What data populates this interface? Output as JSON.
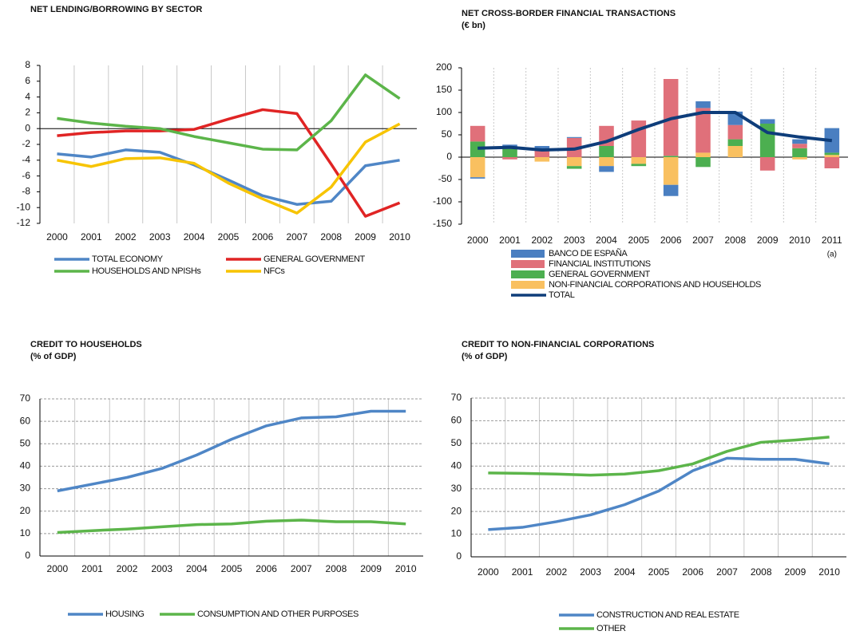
{
  "chart_data": [
    {
      "type": "line",
      "title": "NET LENDING/BORROWING BY SECTOR",
      "categories": [
        "2000",
        "2001",
        "2002",
        "2003",
        "2004",
        "2005",
        "2006",
        "2007",
        "2008",
        "2009",
        "2010"
      ],
      "ylim": [
        -12,
        8
      ],
      "yticks": [
        -12,
        -10,
        -8,
        -6,
        -4,
        -2,
        0,
        2,
        4,
        6,
        8
      ],
      "grid": false,
      "series": [
        {
          "name": "TOTAL ECONOMY",
          "color": "#4f86c6",
          "values": [
            -3.2,
            -3.6,
            -2.7,
            -3.0,
            -4.6,
            -6.5,
            -8.5,
            -9.6,
            -9.2,
            -4.7,
            -4.0
          ]
        },
        {
          "name": "GENERAL GOVERNMENT",
          "color": "#e02424",
          "values": [
            -0.9,
            -0.5,
            -0.3,
            -0.3,
            -0.1,
            1.2,
            2.4,
            1.9,
            -4.5,
            -11.1,
            -9.4
          ]
        },
        {
          "name": "HOUSEHOLDS AND NPISHs",
          "color": "#5cb54a",
          "values": [
            1.3,
            0.7,
            0.3,
            0.0,
            -1.0,
            -1.8,
            -2.6,
            -2.7,
            1.0,
            6.8,
            3.8
          ]
        },
        {
          "name": "NFCs",
          "color": "#f7c400",
          "values": [
            -4.0,
            -4.8,
            -3.8,
            -3.7,
            -4.4,
            -6.9,
            -8.9,
            -10.7,
            -7.4,
            -1.7,
            0.6
          ]
        }
      ]
    },
    {
      "type": "bar",
      "stacked": true,
      "title": "NET CROSS-BORDER FINANCIAL TRANSACTIONS",
      "subtitle": "(€ bn)",
      "annotation": "(a)",
      "categories": [
        "2000",
        "2001",
        "2002",
        "2003",
        "2004",
        "2005",
        "2006",
        "2007",
        "2008",
        "2009",
        "2010",
        "2011"
      ],
      "ylim": [
        -150,
        200
      ],
      "yticks": [
        -150,
        -100,
        -50,
        0,
        50,
        100,
        150,
        200
      ],
      "grid": false,
      "series": [
        {
          "name": "BANCO DE ESPAÑA",
          "type": "bar",
          "color": "#4a7fc1",
          "values": [
            -3,
            8,
            10,
            2,
            -13,
            0,
            -25,
            15,
            30,
            10,
            10,
            55
          ]
        },
        {
          "name": "FINANCIAL INSTITUTIONS",
          "type": "bar",
          "color": "#e0707a",
          "values": [
            35,
            -5,
            15,
            43,
            45,
            82,
            172,
            100,
            32,
            -30,
            10,
            -25
          ]
        },
        {
          "name": "GENERAL GOVERNMENT",
          "type": "bar",
          "color": "#4caf50",
          "values": [
            35,
            20,
            0,
            -6,
            25,
            -5,
            3,
            -22,
            15,
            75,
            20,
            5
          ]
        },
        {
          "name": "NON-FINANCIAL CORPORATIONS AND HOUSEHOLDS",
          "type": "bar",
          "color": "#f9c060",
          "values": [
            -45,
            0,
            -10,
            -20,
            -20,
            -15,
            -62,
            10,
            25,
            0,
            -5,
            5
          ]
        },
        {
          "name": "TOTAL",
          "type": "line",
          "color": "#0e3d7a",
          "values": [
            20,
            22,
            16,
            18,
            35,
            62,
            86,
            100,
            100,
            55,
            45,
            37
          ]
        }
      ]
    },
    {
      "type": "line",
      "title": "CREDIT TO HOUSEHOLDS",
      "subtitle": "(% of GDP)",
      "categories": [
        "2000",
        "2001",
        "2002",
        "2003",
        "2004",
        "2005",
        "2006",
        "2007",
        "2008",
        "2009",
        "2010"
      ],
      "ylim": [
        0,
        70
      ],
      "yticks": [
        0,
        10,
        20,
        30,
        40,
        50,
        60,
        70
      ],
      "grid": true,
      "series": [
        {
          "name": "HOUSING",
          "color": "#4f86c6",
          "values": [
            29,
            32,
            35,
            39,
            45,
            52,
            58,
            61.5,
            62,
            64.5,
            64.5
          ]
        },
        {
          "name": "CONSUMPTION AND OTHER PURPOSES",
          "color": "#5cb54a",
          "values": [
            10.5,
            11.3,
            12,
            13,
            14,
            14.3,
            15.5,
            16,
            15.3,
            15.3,
            14.3
          ]
        }
      ]
    },
    {
      "type": "line",
      "title": "CREDIT TO NON-FINANCIAL CORPORATIONS",
      "subtitle": "(% of GDP)",
      "categories": [
        "2000",
        "2001",
        "2002",
        "2003",
        "2004",
        "2005",
        "2006",
        "2007",
        "2008",
        "2009",
        "2010"
      ],
      "ylim": [
        0,
        70
      ],
      "yticks": [
        0,
        10,
        20,
        30,
        40,
        50,
        60,
        70
      ],
      "grid": true,
      "series": [
        {
          "name": "CONSTRUCTION AND REAL ESTATE",
          "color": "#4f86c6",
          "values": [
            12,
            13,
            15.5,
            18.5,
            23,
            29,
            38,
            43.5,
            43,
            43,
            41
          ]
        },
        {
          "name": "OTHER",
          "color": "#5cb54a",
          "values": [
            37,
            36.8,
            36.5,
            36,
            36.5,
            38,
            41,
            46.5,
            50.5,
            51.5,
            52.8
          ]
        }
      ]
    }
  ]
}
